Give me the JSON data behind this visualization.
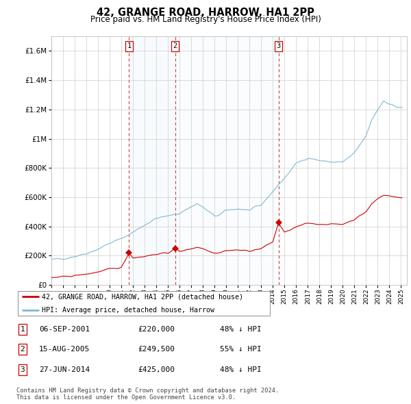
{
  "title": "42, GRANGE ROAD, HARROW, HA1 2PP",
  "subtitle": "Price paid vs. HM Land Registry's House Price Index (HPI)",
  "ytick_values": [
    0,
    200000,
    400000,
    600000,
    800000,
    1000000,
    1200000,
    1400000,
    1600000
  ],
  "ylim": [
    0,
    1700000
  ],
  "xlim_start": 1995.0,
  "xlim_end": 2025.5,
  "hpi_color": "#7EB8D4",
  "hpi_fill_color": "#D6EAF4",
  "price_color": "#CC0000",
  "dashed_color": "#CC4444",
  "transactions": [
    {
      "num": 1,
      "date_str": "06-SEP-2001",
      "year": 2001.67,
      "price": 220000,
      "pct": "48% ↓ HPI"
    },
    {
      "num": 2,
      "date_str": "15-AUG-2005",
      "year": 2005.62,
      "price": 249500,
      "pct": "55% ↓ HPI"
    },
    {
      "num": 3,
      "date_str": "27-JUN-2014",
      "year": 2014.49,
      "price": 425000,
      "pct": "48% ↓ HPI"
    }
  ],
  "legend_label_red": "42, GRANGE ROAD, HARROW, HA1 2PP (detached house)",
  "legend_label_blue": "HPI: Average price, detached house, Harrow",
  "footer": "Contains HM Land Registry data © Crown copyright and database right 2024.\nThis data is licensed under the Open Government Licence v3.0."
}
